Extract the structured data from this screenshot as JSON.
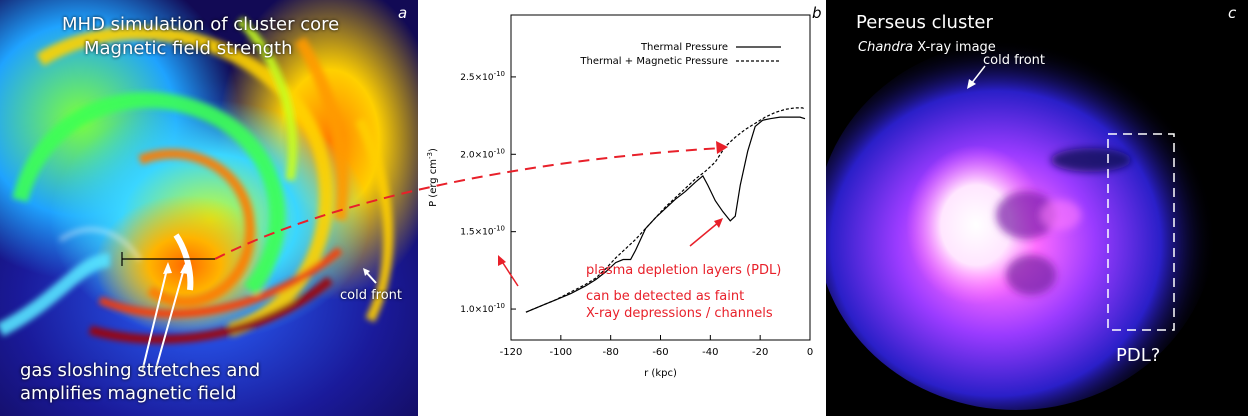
{
  "panel_a": {
    "letter": "a",
    "title_line1": "MHD simulation of cluster core",
    "title_line2": "Magnetic field strength",
    "cold_front": "cold front",
    "caption_line1": "gas sloshing stretches and",
    "caption_line2": "amplifies magnetic field"
  },
  "panel_b": {
    "letter": "b",
    "annotation_title": "plasma depletion layers (PDL)",
    "annotation_line1": "can be detected as faint",
    "annotation_line2": "X-ray depressions / channels"
  },
  "panel_c": {
    "letter": "c",
    "title": "Perseus cluster",
    "subtitle_italic": "Chandra",
    "subtitle_rest": " X-ray image",
    "cold_front": "cold front",
    "pdl_label": "PDL?"
  },
  "colors": {
    "annotation_red": "#e8202a",
    "plasma_magenta": "#ff4dff",
    "plasma_blue": "#3a2bd6"
  },
  "chart_data": {
    "type": "line",
    "xlabel": "r (kpc)",
    "ylabel": "P (erg cm⁻³)",
    "ylabel_main": "P (erg cm",
    "ylabel_exp": "-3",
    "ylabel_close": ")",
    "xlim": [
      -120,
      0
    ],
    "ylim": [
      8e-11,
      2.9e-10
    ],
    "x_ticks": [
      -120,
      -100,
      -80,
      -60,
      -40,
      -20,
      0
    ],
    "y_ticks": [
      {
        "value": 1e-10,
        "mant": "1.0×10",
        "exp": "-10"
      },
      {
        "value": 1.5e-10,
        "mant": "1.5×10",
        "exp": "-10"
      },
      {
        "value": 2e-10,
        "mant": "2.0×10",
        "exp": "-10"
      },
      {
        "value": 2.5e-10,
        "mant": "2.5×10",
        "exp": "-10"
      }
    ],
    "legend_position": "top-right",
    "series": [
      {
        "name": "Thermal Pressure",
        "style": "solid",
        "x": [
          -114,
          -108,
          -102,
          -96,
          -90,
          -86,
          -82,
          -78,
          -75,
          -72,
          -70,
          -66,
          -62,
          -58,
          -54,
          -50,
          -46,
          -43,
          -41,
          -38,
          -35,
          -32,
          -30,
          -28,
          -25,
          -22,
          -19,
          -16,
          -12,
          -8,
          -4,
          -2
        ],
        "y": [
          0.98,
          1.02,
          1.06,
          1.1,
          1.15,
          1.19,
          1.24,
          1.3,
          1.32,
          1.32,
          1.38,
          1.52,
          1.59,
          1.65,
          1.71,
          1.76,
          1.82,
          1.86,
          1.8,
          1.7,
          1.63,
          1.57,
          1.6,
          1.8,
          2.02,
          2.18,
          2.22,
          2.23,
          2.24,
          2.24,
          2.24,
          2.23
        ]
      },
      {
        "name": "Thermal + Magnetic Pressure",
        "style": "dashed",
        "x": [
          -114,
          -108,
          -102,
          -96,
          -90,
          -86,
          -82,
          -78,
          -74,
          -70,
          -66,
          -62,
          -58,
          -54,
          -50,
          -46,
          -42,
          -38,
          -34,
          -30,
          -26,
          -22,
          -18,
          -14,
          -10,
          -6,
          -3,
          -2
        ],
        "y": [
          0.98,
          1.02,
          1.06,
          1.11,
          1.16,
          1.2,
          1.26,
          1.33,
          1.39,
          1.45,
          1.52,
          1.59,
          1.66,
          1.72,
          1.78,
          1.84,
          1.89,
          1.95,
          2.05,
          2.11,
          2.16,
          2.2,
          2.24,
          2.27,
          2.29,
          2.3,
          2.3,
          2.29
        ]
      }
    ],
    "y_scale_note": "values in units of 1e-10"
  }
}
